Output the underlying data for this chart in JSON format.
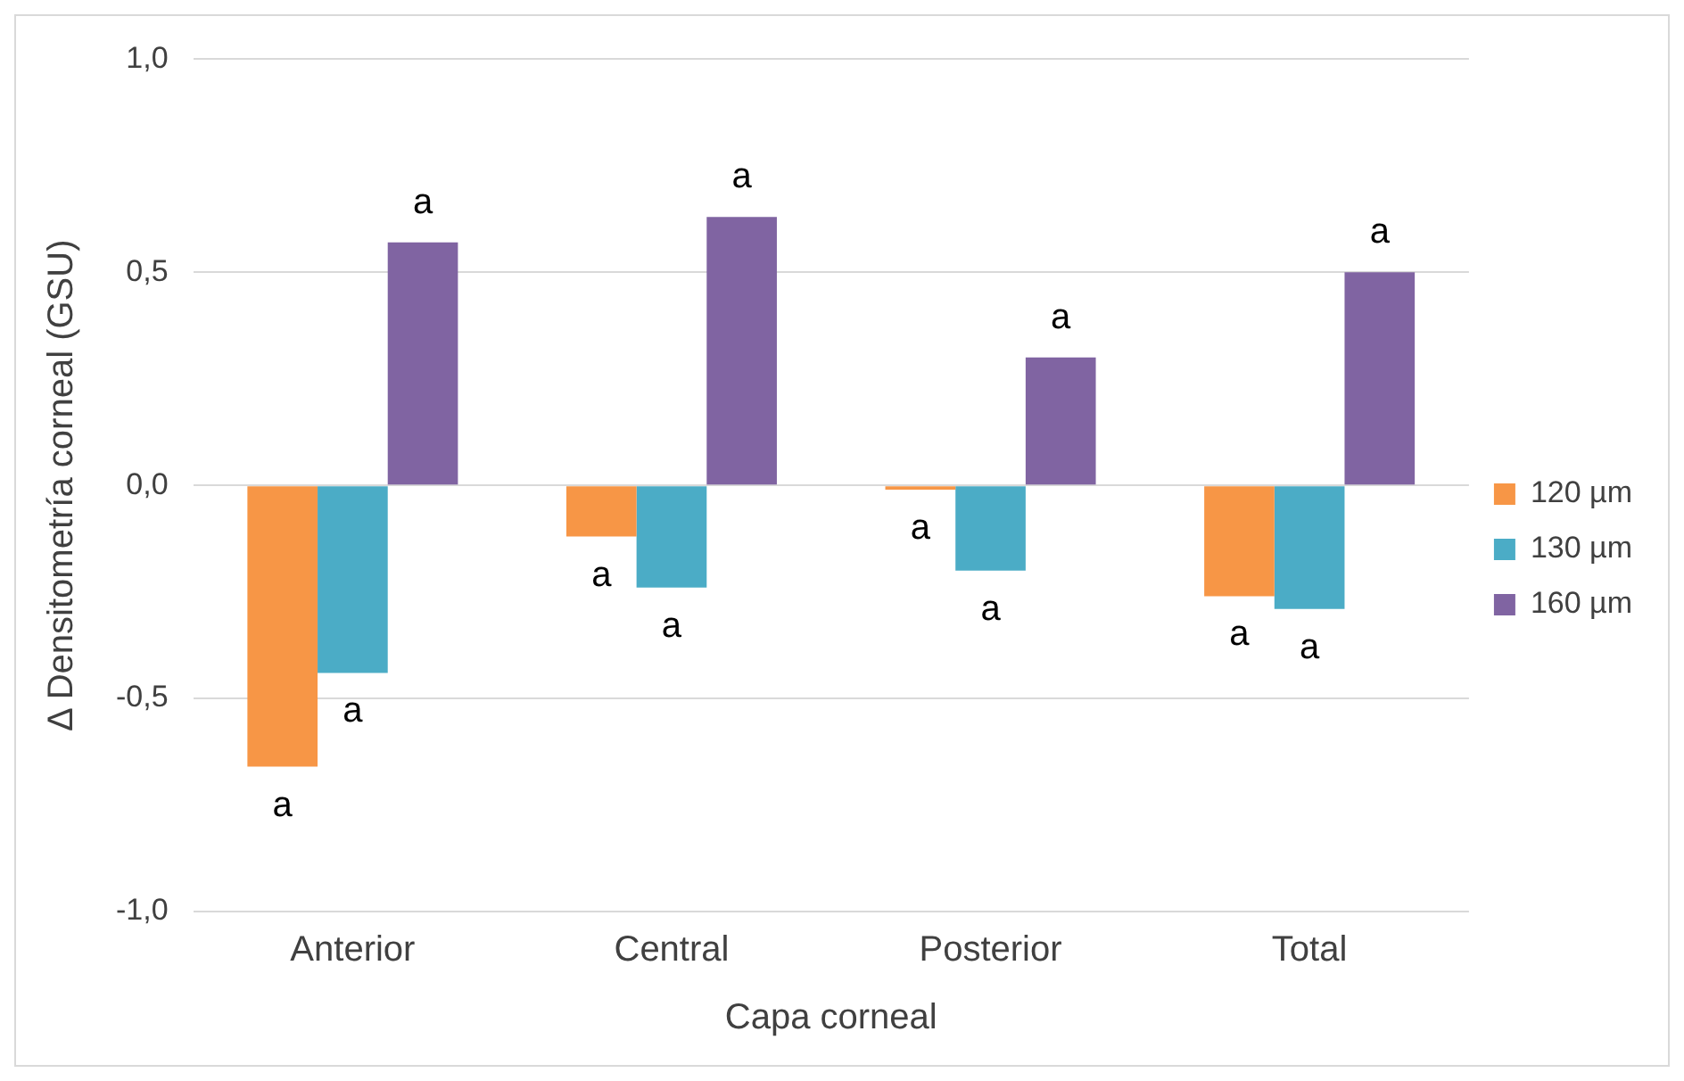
{
  "chart_data": {
    "type": "bar",
    "xlabel": "Capa corneal",
    "ylabel": "Δ Densitometría corneal (GSU)",
    "categories": [
      "Anterior",
      "Central",
      "Posterior",
      "Total"
    ],
    "series": [
      {
        "name": "120 µm",
        "color": "#f79646",
        "values": [
          -0.66,
          -0.12,
          -0.01,
          -0.26
        ],
        "value_labels": [
          "a",
          "a",
          "a",
          "a"
        ]
      },
      {
        "name": "130 µm",
        "color": "#4bacc6",
        "values": [
          -0.44,
          -0.24,
          -0.2,
          -0.29
        ],
        "value_labels": [
          "a",
          "a",
          "a",
          "a"
        ]
      },
      {
        "name": "160 µm",
        "color": "#8064a2",
        "values": [
          0.57,
          0.63,
          0.3,
          0.5
        ],
        "value_labels": [
          "a",
          "a",
          "a",
          "a"
        ]
      }
    ],
    "ylim": [
      -1,
      1
    ],
    "yticks": [
      {
        "value": -1,
        "label": "-1,0"
      },
      {
        "value": -0.5,
        "label": "-0,5"
      },
      {
        "value": 0,
        "label": "0,0"
      },
      {
        "value": 0.5,
        "label": "0,5"
      },
      {
        "value": 1,
        "label": "1,0"
      }
    ],
    "grid": "y",
    "legend": "right"
  }
}
